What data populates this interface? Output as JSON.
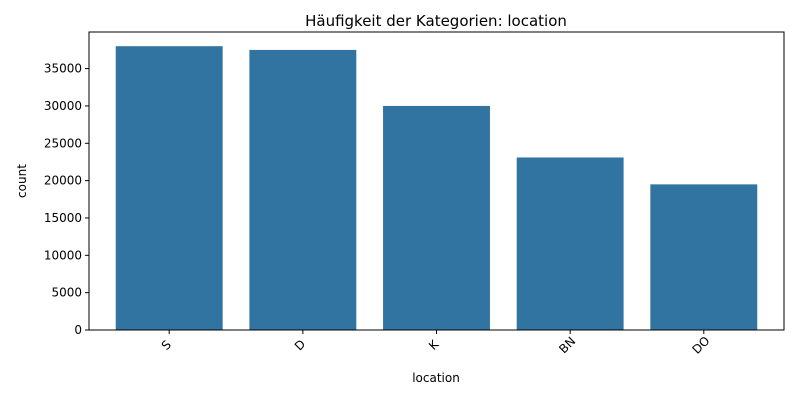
{
  "chart_data": {
    "type": "bar",
    "title": "Häufigkeit der Kategorien: location",
    "xlabel": "location",
    "ylabel": "count",
    "categories": [
      "S",
      "D",
      "K",
      "BN",
      "DO"
    ],
    "values": [
      38000,
      37500,
      30000,
      23100,
      19500
    ],
    "ylim": [
      0,
      39900
    ],
    "yticks": [
      0,
      5000,
      10000,
      15000,
      20000,
      25000,
      30000,
      35000
    ],
    "ytick_labels": [
      "0",
      "5000",
      "10000",
      "15000",
      "20000",
      "25000",
      "30000",
      "35000"
    ],
    "bar_color": "#3274a1",
    "grid": false,
    "legend": false
  }
}
